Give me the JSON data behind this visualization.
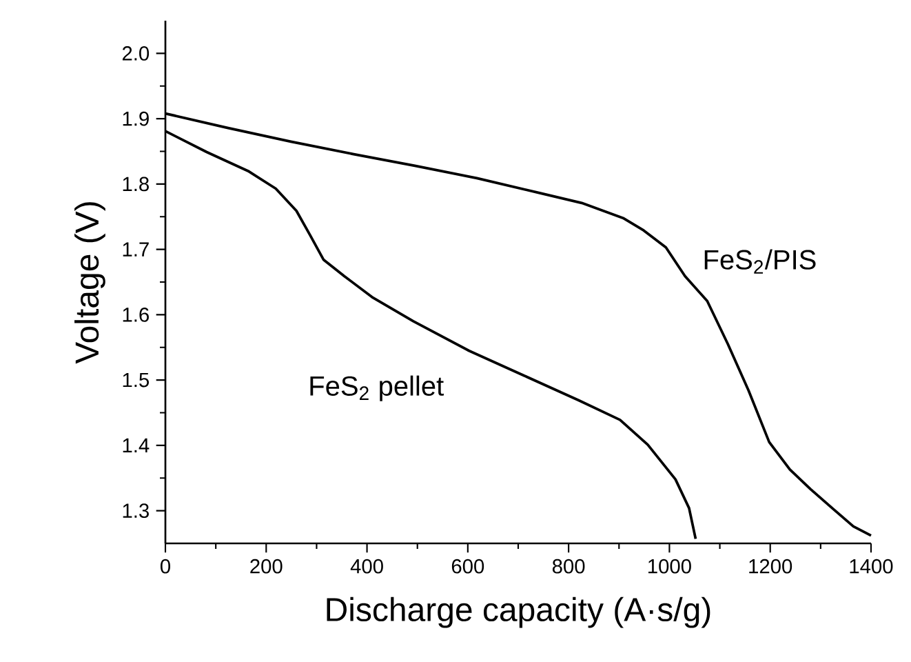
{
  "chart_data": {
    "type": "line",
    "xlabel": "Discharge capacity (A·s/g)",
    "ylabel": "Voltage (V)",
    "xlim": [
      0,
      1400
    ],
    "ylim": [
      1.25,
      2.05
    ],
    "xticks": [
      0,
      200,
      400,
      600,
      800,
      1000,
      1200,
      1400
    ],
    "yticks": [
      1.3,
      1.4,
      1.5,
      1.6,
      1.7,
      1.8,
      1.9,
      {
        "value": 2.0,
        "label": "2.0"
      }
    ],
    "legend": false,
    "grid": false,
    "marker": "none",
    "line_style": "solid",
    "series": [
      {
        "name": "FeS$_{2}$/PIS",
        "color": "#000000",
        "x": [
          0,
          123,
          249,
          372,
          495,
          618,
          744,
          826,
          908,
          949,
          993,
          1031,
          1075,
          1116,
          1157,
          1198,
          1239,
          1280,
          1323,
          1365,
          1400
        ],
        "values": [
          1.908,
          1.886,
          1.865,
          1.846,
          1.828,
          1.809,
          1.786,
          1.771,
          1.748,
          1.729,
          1.703,
          1.659,
          1.621,
          1.555,
          1.484,
          1.405,
          1.363,
          1.333,
          1.304,
          1.276,
          1.262
        ]
      },
      {
        "name": "FeS$_{2}$ pellet",
        "color": "#000000",
        "x": [
          0,
          82,
          164,
          219,
          260,
          287,
          314,
          355,
          410,
          492,
          602,
          711,
          820,
          902,
          957,
          1012,
          1039,
          1052
        ],
        "values": [
          1.881,
          1.849,
          1.82,
          1.793,
          1.759,
          1.722,
          1.684,
          1.659,
          1.627,
          1.59,
          1.545,
          1.507,
          1.469,
          1.439,
          1.401,
          1.348,
          1.304,
          1.257
        ]
      }
    ]
  }
}
